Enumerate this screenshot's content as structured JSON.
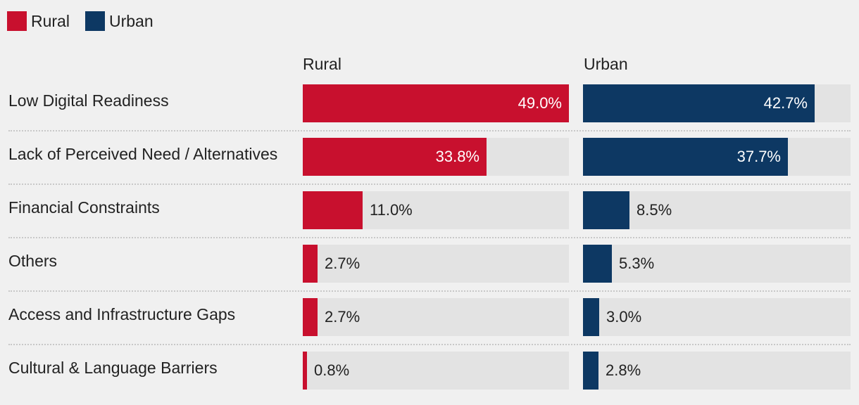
{
  "chart_data": {
    "type": "bar",
    "orientation": "horizontal",
    "layout": "small-multiples",
    "categories": [
      "Low Digital Readiness",
      "Lack of Perceived Need / Alternatives",
      "Financial Constraints",
      "Others",
      "Access and Infrastructure Gaps",
      "Cultural & Language Barriers"
    ],
    "series": [
      {
        "name": "Rural",
        "color": "#c8102e",
        "values": [
          49.0,
          33.8,
          11.0,
          2.7,
          2.7,
          0.8
        ]
      },
      {
        "name": "Urban",
        "color": "#0d3863",
        "values": [
          42.7,
          37.7,
          8.5,
          5.3,
          3.0,
          2.8
        ]
      }
    ],
    "xlim": [
      0,
      49
    ],
    "value_format": "percent-1dp",
    "legend": {
      "position": "top-left",
      "entries": [
        "Rural",
        "Urban"
      ]
    },
    "panel_titles": [
      "Rural",
      "Urban"
    ],
    "grid": false
  }
}
